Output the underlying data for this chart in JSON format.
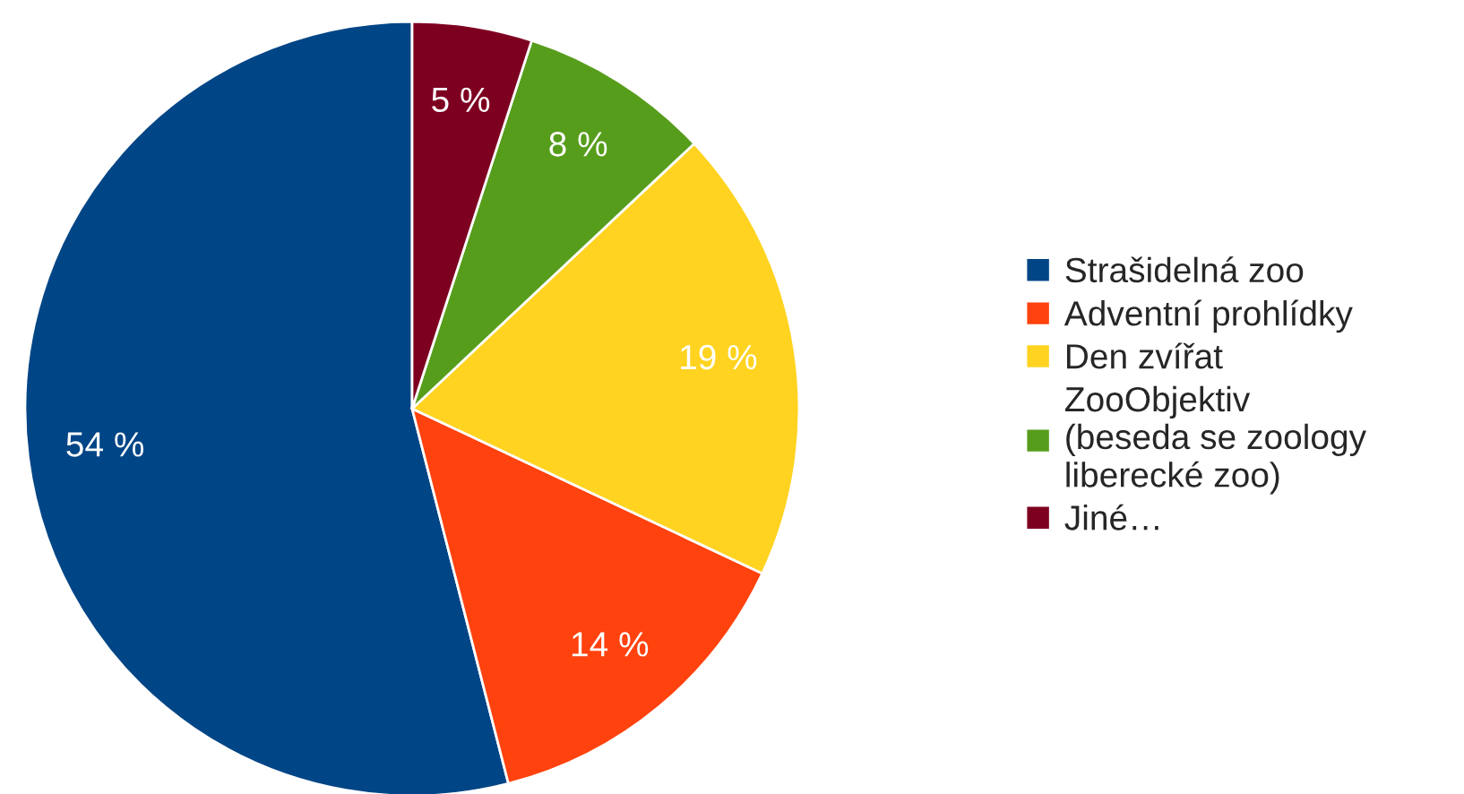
{
  "chart_data": {
    "type": "pie",
    "categories": [
      "Strašidelná zoo",
      "Adventní prohlídky",
      "Den zvířat",
      "ZooObjektiv\n(beseda se zoology\nliberecké zoo)",
      "Jiné…"
    ],
    "values": [
      54,
      14,
      19,
      8,
      5
    ],
    "colors": [
      "#004586",
      "#ff420e",
      "#ffd320",
      "#579d1c",
      "#7e0021"
    ],
    "value_labels": [
      "54 %",
      "14 %",
      "19 %",
      "8 %",
      "5 %"
    ],
    "legend": "right"
  }
}
